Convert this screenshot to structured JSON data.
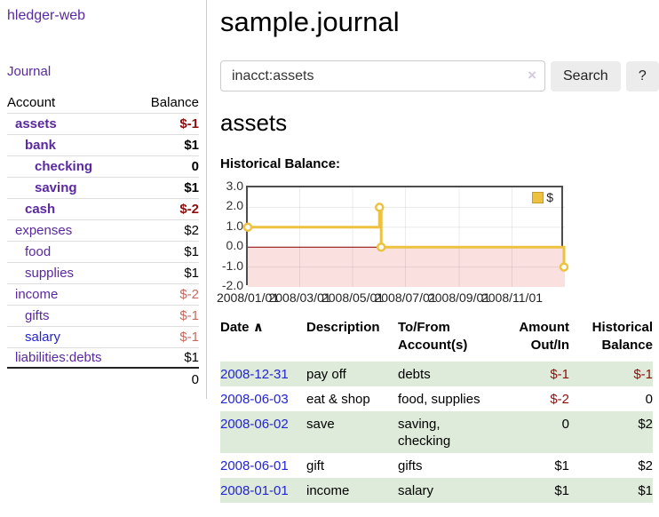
{
  "sidebar": {
    "app_title": "hledger-web",
    "journal_label": "Journal",
    "accounts": {
      "header_account": "Account",
      "header_balance": "Balance",
      "rows": [
        {
          "name": "assets",
          "balance": "$-1",
          "depth": 0,
          "bold": true,
          "balance_style": "neg-dark",
          "link": "purple"
        },
        {
          "name": "bank",
          "balance": "$1",
          "depth": 1,
          "bold": true,
          "balance_style": "",
          "link": "purple"
        },
        {
          "name": "checking",
          "balance": "0",
          "depth": 2,
          "bold": true,
          "balance_style": "",
          "link": "purple"
        },
        {
          "name": "saving",
          "balance": "$1",
          "depth": 2,
          "bold": true,
          "balance_style": "",
          "link": "purple"
        },
        {
          "name": "cash",
          "balance": "$-2",
          "depth": 1,
          "bold": true,
          "balance_style": "neg-dark",
          "link": "purple"
        },
        {
          "name": "expenses",
          "balance": "$2",
          "depth": 0,
          "bold": false,
          "balance_style": "",
          "link": "purple"
        },
        {
          "name": "food",
          "balance": "$1",
          "depth": 1,
          "bold": false,
          "balance_style": "",
          "link": "purple"
        },
        {
          "name": "supplies",
          "balance": "$1",
          "depth": 1,
          "bold": false,
          "balance_style": "",
          "link": "purple"
        },
        {
          "name": "income",
          "balance": "$-2",
          "depth": 0,
          "bold": false,
          "balance_style": "neg-light",
          "link": "purple"
        },
        {
          "name": "gifts",
          "balance": "$-1",
          "depth": 1,
          "bold": false,
          "balance_style": "neg-light",
          "link": "purple"
        },
        {
          "name": "salary",
          "balance": "$-1",
          "depth": 1,
          "bold": false,
          "balance_style": "neg-light",
          "link": "blue"
        },
        {
          "name": "liabilities:debts",
          "balance": "$1",
          "depth": 0,
          "bold": false,
          "balance_style": "",
          "link": "purple"
        }
      ],
      "total": "0"
    }
  },
  "main": {
    "title": "sample.journal",
    "search": {
      "value": "inacct:assets",
      "clear_icon": "×",
      "button_label": "Search",
      "help_label": "?"
    },
    "account_heading": "assets",
    "chart_label": "Historical Balance:"
  },
  "chart_data": {
    "type": "line",
    "step": true,
    "title": "Historical Balance:",
    "legend": "$",
    "legend_position": "top-right",
    "grid": true,
    "negative_region_shaded": true,
    "x_range": [
      "2008-01-01",
      "2009-01-01"
    ],
    "y_range": [
      -2,
      3
    ],
    "y_ticks": [
      "3.0",
      "2.0",
      "1.0",
      "0.0",
      "-1.0",
      "-2.0"
    ],
    "x_ticks": [
      "2008/01/01",
      "2008/03/01",
      "2008/05/01",
      "2008/07/01",
      "2008/09/01",
      "2008/11/01"
    ],
    "series": [
      {
        "name": "$",
        "points": [
          [
            "2008-01-01",
            1
          ],
          [
            "2008-06-01",
            2
          ],
          [
            "2008-06-03",
            0
          ],
          [
            "2008-12-31",
            -1
          ]
        ]
      }
    ]
  },
  "register": {
    "headers": {
      "date": "Date",
      "description": "Description",
      "accounts": "To/From Account(s)",
      "amount": "Amount Out/In",
      "balance": "Historical Balance"
    },
    "sort_icon": "∧",
    "rows": [
      {
        "date": "2008-12-31",
        "description": "pay off",
        "accounts": "debts",
        "amount": "$-1",
        "balance": "$-1",
        "amount_negative": true,
        "balance_negative": true,
        "shaded": true
      },
      {
        "date": "2008-06-03",
        "description": "eat & shop",
        "accounts": "food, supplies",
        "amount": "$-2",
        "balance": "0",
        "amount_negative": true,
        "balance_negative": false,
        "shaded": false
      },
      {
        "date": "2008-06-02",
        "description": "save",
        "accounts": "saving,\nchecking",
        "amount": "0",
        "balance": "$2",
        "amount_negative": false,
        "balance_negative": false,
        "shaded": true
      },
      {
        "date": "2008-06-01",
        "description": "gift",
        "accounts": "gifts",
        "amount": "$1",
        "balance": "$2",
        "amount_negative": false,
        "balance_negative": false,
        "shaded": false
      },
      {
        "date": "2008-01-01",
        "description": "income",
        "accounts": "salary",
        "amount": "$1",
        "balance": "$1",
        "amount_negative": false,
        "balance_negative": false,
        "shaded": true
      }
    ]
  },
  "colors": {
    "link_purple": "#5a28a0",
    "link_blue": "#2323d7",
    "negative_dark": "#8c0f0f",
    "negative_light": "#c6695f",
    "row_green": "#deebda",
    "series_yellow": "#edc240",
    "negative_region_pink": "#fbe0e0",
    "zero_line_red": "#8b0000",
    "grid_gray": "#e4e4e4"
  }
}
